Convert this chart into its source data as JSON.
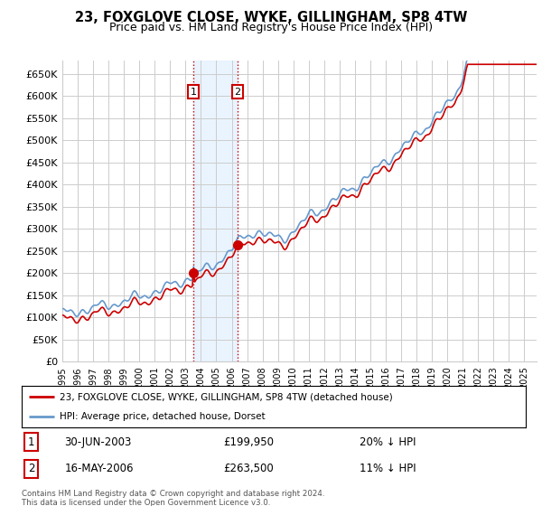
{
  "title": "23, FOXGLOVE CLOSE, WYKE, GILLINGHAM, SP8 4TW",
  "subtitle": "Price paid vs. HM Land Registry's House Price Index (HPI)",
  "ylabel_ticks": [
    "£0",
    "£50K",
    "£100K",
    "£150K",
    "£200K",
    "£250K",
    "£300K",
    "£350K",
    "£400K",
    "£450K",
    "£500K",
    "£550K",
    "£600K",
    "£650K"
  ],
  "ytick_values": [
    0,
    50000,
    100000,
    150000,
    200000,
    250000,
    300000,
    350000,
    400000,
    450000,
    500000,
    550000,
    600000,
    650000
  ],
  "ylim": [
    0,
    680000
  ],
  "hpi_color": "#6699cc",
  "price_color": "#cc0000",
  "transaction1_x": 2003.5,
  "transaction1_price": 199950,
  "transaction1_label": "30-JUN-2003",
  "transaction1_pct": "20% ↓ HPI",
  "transaction2_x": 2006.375,
  "transaction2_price": 263500,
  "transaction2_label": "16-MAY-2006",
  "transaction2_pct": "11% ↓ HPI",
  "legend_line1": "23, FOXGLOVE CLOSE, WYKE, GILLINGHAM, SP8 4TW (detached house)",
  "legend_line2": "HPI: Average price, detached house, Dorset",
  "footer": "Contains HM Land Registry data © Crown copyright and database right 2024.\nThis data is licensed under the Open Government Licence v3.0.",
  "background_color": "#ffffff",
  "grid_color": "#cccccc",
  "shade_color": "#ddeeff"
}
